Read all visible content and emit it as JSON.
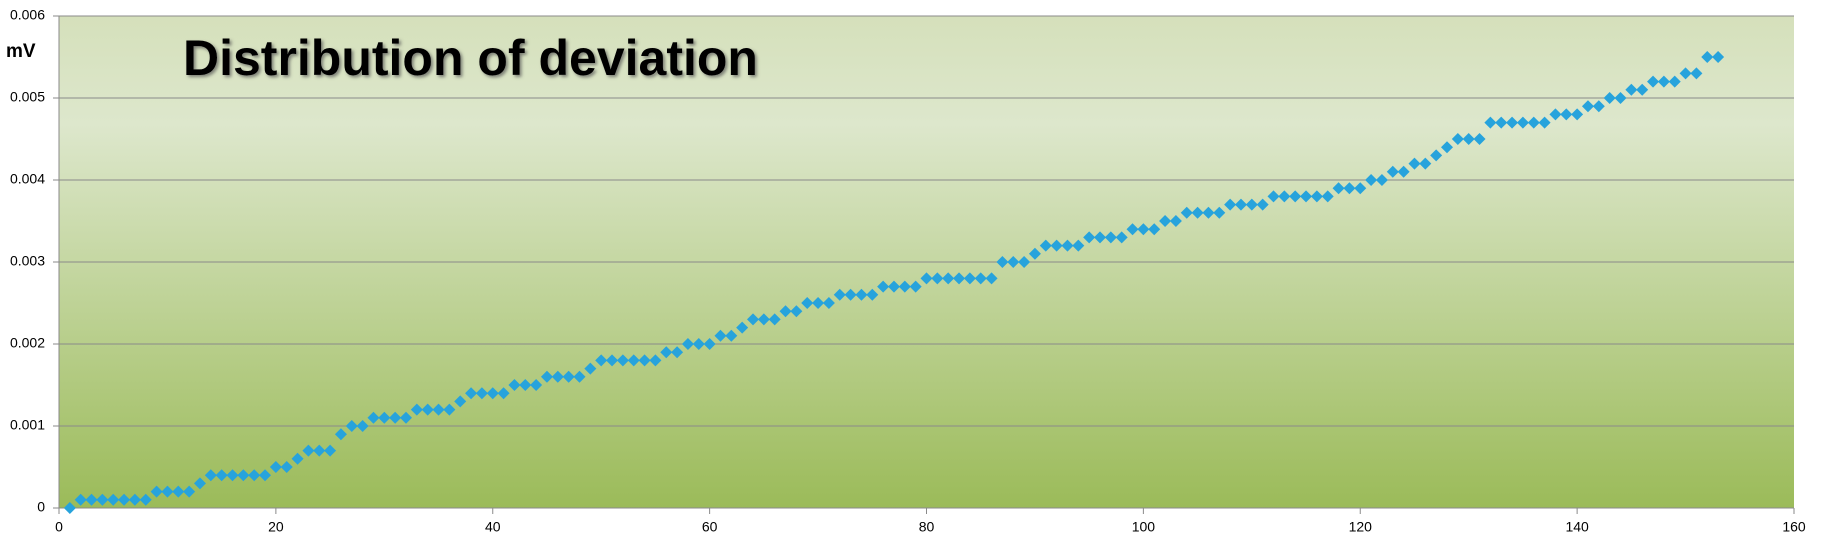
{
  "chart_data": {
    "type": "scatter",
    "title": "Distribution of deviation",
    "y_label": "mV",
    "color": "#27a3dc",
    "x": [
      1,
      2,
      3,
      4,
      5,
      6,
      7,
      8,
      9,
      10,
      11,
      12,
      13,
      14,
      15,
      16,
      17,
      18,
      19,
      20,
      21,
      22,
      23,
      24,
      25,
      26,
      27,
      28,
      29,
      30,
      31,
      32,
      33,
      34,
      35,
      36,
      37,
      38,
      39,
      40,
      41,
      42,
      43,
      44,
      45,
      46,
      47,
      48,
      49,
      50,
      51,
      52,
      53,
      54,
      55,
      56,
      57,
      58,
      59,
      60,
      61,
      62,
      63,
      64,
      65,
      66,
      67,
      68,
      69,
      70,
      71,
      72,
      73,
      74,
      75,
      76,
      77,
      78,
      79,
      80,
      81,
      82,
      83,
      84,
      85,
      86,
      87,
      88,
      89,
      90,
      91,
      92,
      93,
      94,
      95,
      96,
      97,
      98,
      99,
      100,
      101,
      102,
      103,
      104,
      105,
      106,
      107,
      108,
      109,
      110,
      111,
      112,
      113,
      114,
      115,
      116,
      117,
      118,
      119,
      120,
      121,
      122,
      123,
      124,
      125,
      126,
      127,
      128,
      129,
      130,
      131,
      132,
      133,
      134,
      135,
      136,
      137,
      138,
      139,
      140,
      141,
      142,
      143,
      144,
      145,
      146,
      147,
      148,
      149,
      150,
      151,
      152,
      153
    ],
    "values": [
      0,
      0.0001,
      0.0001,
      0.0001,
      0.0001,
      0.0001,
      0.0001,
      0.0001,
      0.0002,
      0.0002,
      0.0002,
      0.0002,
      0.0003,
      0.0004,
      0.0004,
      0.0004,
      0.0004,
      0.0004,
      0.0004,
      0.0005,
      0.0005,
      0.0006,
      0.0007,
      0.0007,
      0.0007,
      0.0009,
      0.001,
      0.001,
      0.0011,
      0.0011,
      0.0011,
      0.0011,
      0.0012,
      0.0012,
      0.0012,
      0.0012,
      0.0013,
      0.0014,
      0.0014,
      0.0014,
      0.0014,
      0.0015,
      0.0015,
      0.0015,
      0.0016,
      0.0016,
      0.0016,
      0.0016,
      0.0017,
      0.0018,
      0.0018,
      0.0018,
      0.0018,
      0.0018,
      0.0018,
      0.0019,
      0.0019,
      0.002,
      0.002,
      0.002,
      0.0021,
      0.0021,
      0.0022,
      0.0023,
      0.0023,
      0.0023,
      0.0024,
      0.0024,
      0.0025,
      0.0025,
      0.0025,
      0.0026,
      0.0026,
      0.0026,
      0.0026,
      0.0027,
      0.0027,
      0.0027,
      0.0027,
      0.0028,
      0.0028,
      0.0028,
      0.0028,
      0.0028,
      0.0028,
      0.0028,
      0.003,
      0.003,
      0.003,
      0.0031,
      0.0032,
      0.0032,
      0.0032,
      0.0032,
      0.0033,
      0.0033,
      0.0033,
      0.0033,
      0.0034,
      0.0034,
      0.0034,
      0.0035,
      0.0035,
      0.0036,
      0.0036,
      0.0036,
      0.0036,
      0.0037,
      0.0037,
      0.0037,
      0.0037,
      0.0038,
      0.0038,
      0.0038,
      0.0038,
      0.0038,
      0.0038,
      0.0039,
      0.0039,
      0.0039,
      0.004,
      0.004,
      0.0041,
      0.0041,
      0.0042,
      0.0042,
      0.0043,
      0.0044,
      0.0045,
      0.0045,
      0.0045,
      0.0047,
      0.0047,
      0.0047,
      0.0047,
      0.0047,
      0.0047,
      0.0048,
      0.0048,
      0.0048,
      0.0049,
      0.0049,
      0.005,
      0.005,
      0.0051,
      0.0051,
      0.0052,
      0.0052,
      0.0052,
      0.0053,
      0.0053,
      0.0055,
      0.0055
    ],
    "xlim": [
      0,
      160
    ],
    "xticks": [
      0,
      20,
      40,
      60,
      80,
      100,
      120,
      140,
      160
    ],
    "ylim": [
      0,
      0.006
    ],
    "yticks": [
      0,
      0.001,
      0.002,
      0.003,
      0.004,
      0.005,
      0.006
    ],
    "grid": true
  }
}
